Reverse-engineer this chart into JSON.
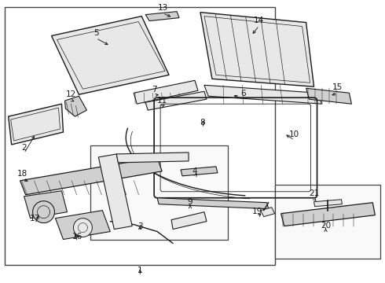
{
  "bg_color": "#ffffff",
  "line_color": "#1a1a1a",
  "fig_width": 4.9,
  "fig_height": 3.6,
  "dpi": 100,
  "fill_light": "#e8e8e8",
  "fill_med": "#d0d0d0",
  "fill_white": "#f5f5f5"
}
